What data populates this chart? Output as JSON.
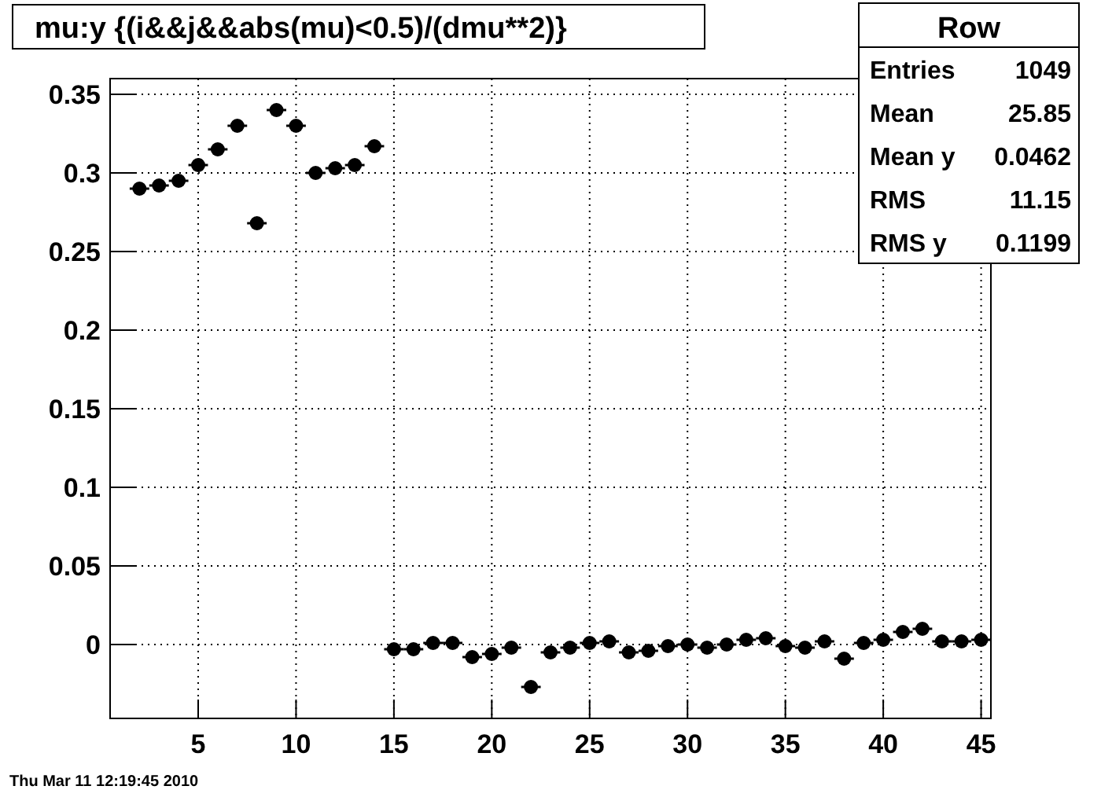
{
  "chart_data": {
    "type": "scatter",
    "title": "mu:y {(i&&j&&abs(mu)<0.5)/(dmu**2)}",
    "x": [
      2,
      3,
      4,
      5,
      6,
      7,
      8,
      9,
      10,
      11,
      12,
      13,
      14,
      15,
      16,
      17,
      18,
      19,
      20,
      21,
      22,
      23,
      24,
      25,
      26,
      27,
      28,
      29,
      30,
      31,
      32,
      33,
      34,
      35,
      36,
      37,
      38,
      39,
      40,
      41,
      42,
      43,
      44,
      45
    ],
    "series": [
      {
        "color": "#000000",
        "values": [
          0.29,
          0.292,
          0.295,
          0.305,
          0.315,
          0.33,
          0.268,
          0.34,
          0.33,
          0.3,
          0.303,
          0.305,
          0.317,
          -0.003,
          -0.003,
          0.001,
          0.001,
          -0.008,
          -0.006,
          -0.002,
          -0.027,
          -0.005,
          -0.002,
          0.001,
          0.002,
          -0.005,
          -0.004,
          -0.001,
          0,
          -0.002,
          0,
          0.003,
          0.004,
          -0.001,
          -0.002,
          0.002,
          -0.009,
          0.001,
          0.003,
          0.008,
          0.01,
          0.002,
          0.002,
          0.003
        ],
        "xerrors": [
          0.5,
          0.5,
          0.5,
          0.5,
          0.5,
          0.5,
          0.5,
          0.5,
          0.5,
          0.5,
          0.5,
          0.5,
          0.5,
          0.5,
          0.5,
          0.5,
          0.5,
          0.5,
          0.5,
          0.5,
          0.5,
          0.5,
          0.5,
          0.5,
          0.5,
          0.5,
          0.5,
          0.5,
          0.5,
          0.5,
          0.5,
          0.5,
          0.5,
          0.5,
          0.5,
          0.5,
          0.5,
          0.5,
          0.5,
          0.5,
          0.5,
          0.5,
          0.5,
          0.5
        ]
      }
    ],
    "xlim": [
      0.5,
      45.5
    ],
    "xticks": [
      5,
      10,
      15,
      20,
      25,
      30,
      35,
      40,
      45
    ],
    "ylim": [
      -0.047,
      0.36
    ],
    "yticks": [
      0,
      0.05,
      0.1,
      0.15,
      0.2,
      0.25,
      0.3,
      0.35
    ],
    "grid": true,
    "marker": "circle",
    "annotations": [
      "Row",
      "Entries 1049",
      "Mean 25.85",
      "Mean y 0.0462",
      "RMS 11.15",
      "RMS y 0.1199",
      "Thu Mar 11 12:19:45 2010"
    ]
  }
}
